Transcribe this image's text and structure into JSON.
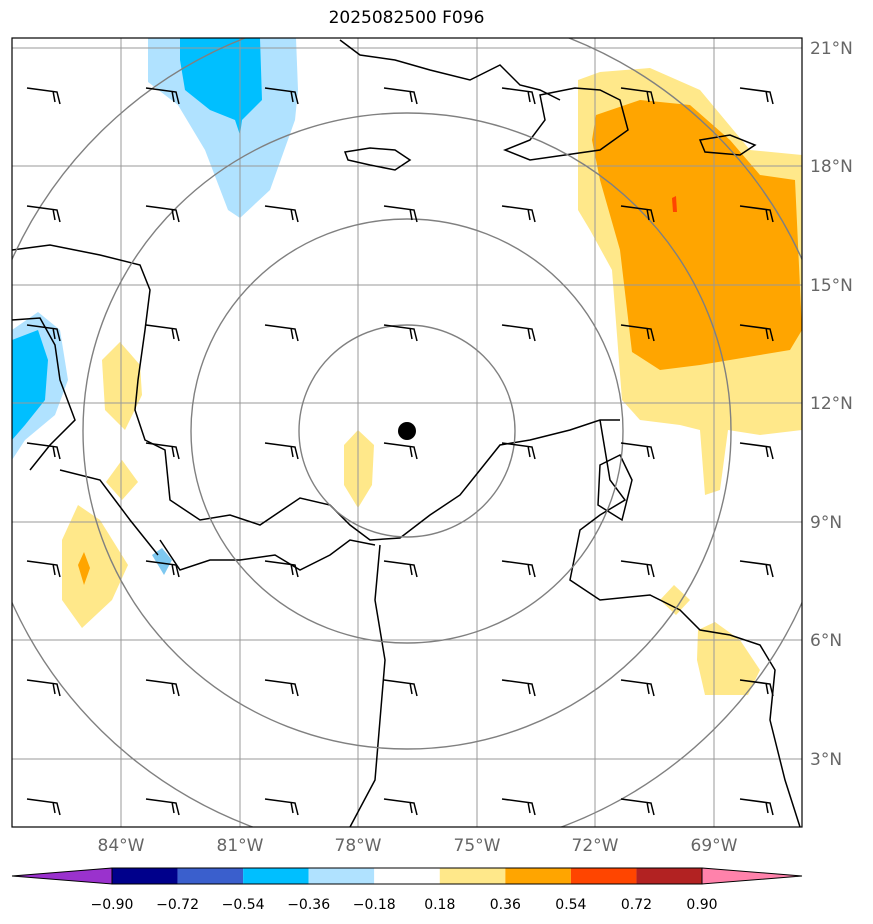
{
  "title": "2025082500 F096",
  "lon_labels": [
    "84°W",
    "81°W",
    "78°W",
    "75°W",
    "72°W",
    "69°W"
  ],
  "lat_labels": [
    "21°N",
    "18°N",
    "15°N",
    "12°N",
    "9°N",
    "6°N",
    "3°N"
  ],
  "colorbar": {
    "ticks": [
      "−0.90",
      "−0.72",
      "−0.54",
      "−0.36",
      "−0.18",
      "0.18",
      "0.36",
      "0.54",
      "0.72",
      "0.90"
    ],
    "colors": [
      "#9a32cd",
      "#00008b",
      "#3a5fcd",
      "#00bfff",
      "#b0e2ff",
      "#ffffff",
      "#ffe88a",
      "#ffa500",
      "#ff4500",
      "#b22222",
      "#ff82ab"
    ]
  },
  "center_marker": "storm-center",
  "range_rings_count": 4
}
